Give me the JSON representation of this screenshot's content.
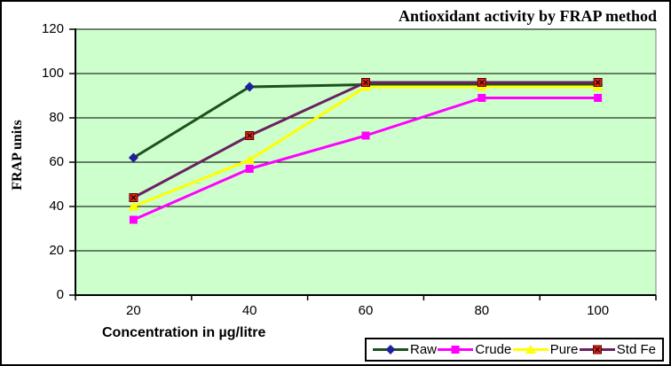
{
  "chart_data": {
    "type": "line",
    "title": "Antioxidant activity by FRAP method",
    "xlabel": "Concentration in µg/litre",
    "ylabel": "FRAP units",
    "x_categories": [
      20,
      40,
      60,
      80,
      100
    ],
    "y_ticks": [
      0,
      20,
      40,
      60,
      80,
      100,
      120
    ],
    "ylim": [
      0,
      120
    ],
    "grid": "horizontal-black-lines",
    "legend_position": "bottom-right",
    "plot_bg": "#ccffcc",
    "plot_border_color": "#808080",
    "axis_color": "#000000",
    "series": [
      {
        "name": "Raw",
        "line_color": "#1b511b",
        "marker": "diamond",
        "marker_color": "#201f9e",
        "values": [
          62,
          94,
          95,
          95,
          95
        ]
      },
      {
        "name": "Crude",
        "line_color": "#ff00ff",
        "marker": "square",
        "marker_color": "#ff00ff",
        "values": [
          34,
          57,
          72,
          89,
          89
        ]
      },
      {
        "name": "Pure",
        "line_color": "#ffff00",
        "marker": "triangle",
        "marker_color": "#ffff00",
        "values": [
          40,
          61,
          94,
          94,
          94
        ]
      },
      {
        "name": "Std Fe",
        "line_color": "#6b2160",
        "marker": "square-x",
        "marker_color": "#dd2418",
        "values": [
          44,
          72,
          96,
          96,
          96
        ]
      }
    ]
  }
}
